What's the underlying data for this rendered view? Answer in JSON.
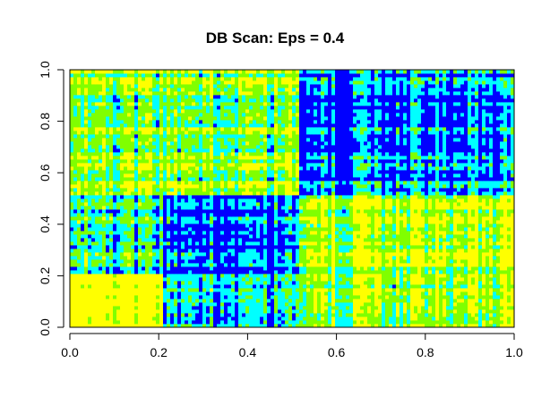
{
  "chart_data": {
    "type": "heatmap",
    "title": "DB Scan: Eps = 0.4",
    "xlabel": "",
    "ylabel": "",
    "xlim": [
      0,
      1
    ],
    "ylim": [
      0,
      1
    ],
    "x_ticks": [
      "0.0",
      "0.2",
      "0.4",
      "0.6",
      "0.8",
      "1.0"
    ],
    "y_ticks": [
      "0.0",
      "0.2",
      "0.4",
      "0.6",
      "0.8",
      "1.0"
    ],
    "grid": false,
    "legend": "none",
    "colors": {
      "low": "#0000FF",
      "low_mid": "#00FFFF",
      "mid": "#80FF00",
      "high": "#FFFF00"
    },
    "block_boundaries": [
      0.0,
      0.21,
      0.52,
      1.0
    ],
    "block_values": [
      [
        0.92,
        0.35,
        0.65
      ],
      [
        0.4,
        0.2,
        0.72
      ],
      [
        0.58,
        0.62,
        0.22
      ]
    ]
  }
}
